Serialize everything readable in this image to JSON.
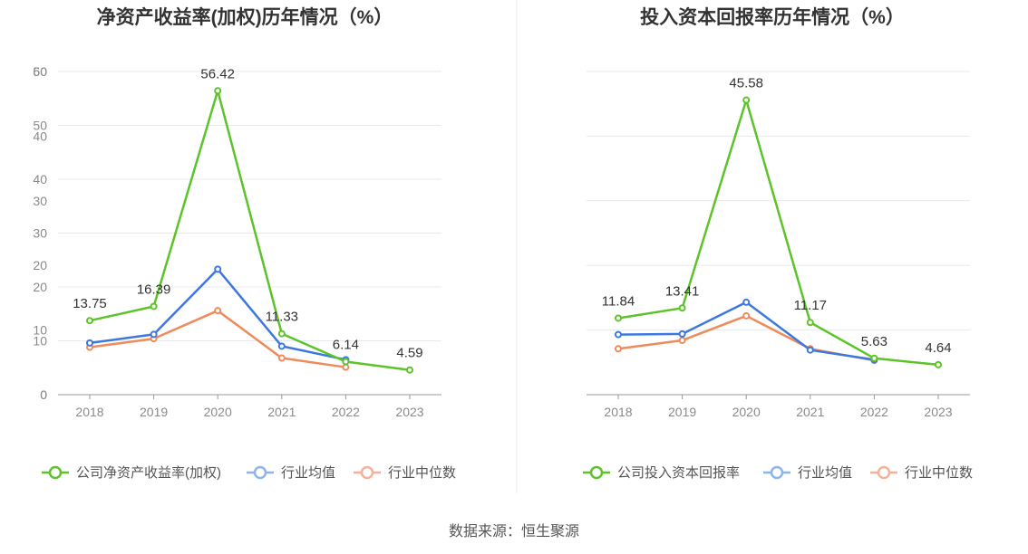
{
  "footer": "数据来源：恒生聚源",
  "colors": {
    "company": "#5cc42a",
    "industry_avg": "#3d78e0",
    "industry_median": "#ef8a5a",
    "grid": "#e6e9ef",
    "axis": "#999999"
  },
  "chart_data": [
    {
      "type": "line",
      "title": "净资产收益率(加权)历年情况（%）",
      "x": [
        "2018",
        "2019",
        "2020",
        "2021",
        "2022",
        "2023"
      ],
      "ylim": [
        0,
        60
      ],
      "yticks": [
        0,
        10,
        20,
        30,
        40,
        50,
        60
      ],
      "grid": true,
      "legend_position": "bottom",
      "series": [
        {
          "name": "公司净资产收益率(加权)",
          "color": "#5cc42a",
          "values": [
            13.75,
            16.39,
            56.42,
            11.33,
            6.14,
            4.59
          ],
          "labels": [
            "13.75",
            "16.39",
            "56.42",
            "11.33",
            "6.14",
            "4.59"
          ]
        },
        {
          "name": "行业均值",
          "color": "#3d78e0",
          "values": [
            9.6,
            11.2,
            23.3,
            9.0,
            6.5,
            null
          ]
        },
        {
          "name": "行业中位数",
          "color": "#ef8a5a",
          "values": [
            8.8,
            10.4,
            15.6,
            6.8,
            5.1,
            null
          ]
        }
      ]
    },
    {
      "type": "line",
      "title": "投入资本回报率历年情况（%）",
      "x": [
        "2018",
        "2019",
        "2020",
        "2021",
        "2022",
        "2023"
      ],
      "ylim": [
        0,
        50
      ],
      "yticks": [
        0,
        10,
        20,
        30,
        40,
        50
      ],
      "grid": true,
      "legend_position": "bottom",
      "series": [
        {
          "name": "公司投入资本回报率",
          "color": "#5cc42a",
          "values": [
            11.84,
            13.41,
            45.58,
            11.17,
            5.63,
            4.64
          ],
          "labels": [
            "11.84",
            "13.41",
            "45.58",
            "11.17",
            "5.63",
            "4.64"
          ]
        },
        {
          "name": "行业均值",
          "color": "#3d78e0",
          "values": [
            9.3,
            9.4,
            14.3,
            6.9,
            5.4,
            null
          ]
        },
        {
          "name": "行业中位数",
          "color": "#ef8a5a",
          "values": [
            7.1,
            8.4,
            12.2,
            7.1,
            5.3,
            null
          ]
        }
      ]
    }
  ]
}
